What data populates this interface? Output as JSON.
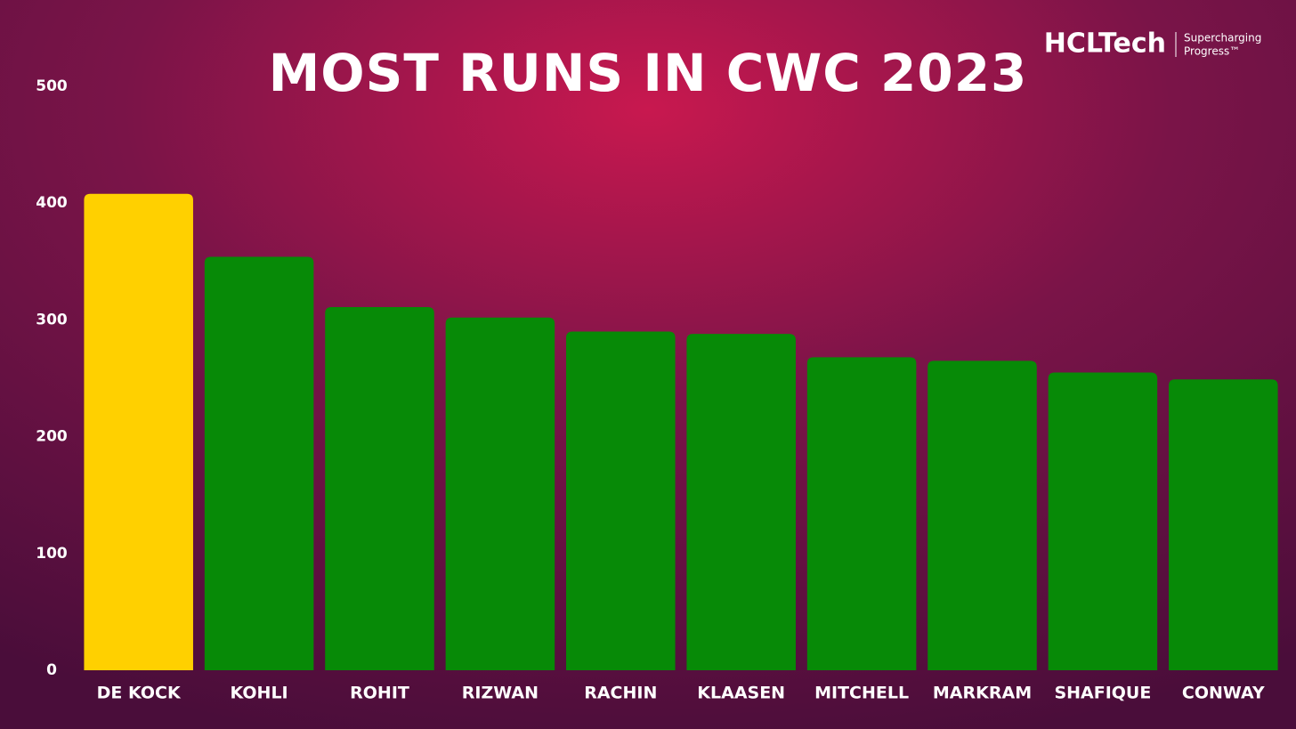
{
  "chart_data": {
    "type": "bar",
    "title": "MOST RUNS IN CWC 2023",
    "brand": {
      "name": "HCLTech",
      "tagline_1": "Supercharging",
      "tagline_2": "Progress™"
    },
    "categories": [
      "DE KOCK",
      "KOHLI",
      "ROHIT",
      "RIZWAN",
      "RACHIN",
      "KLAASEN",
      "MITCHELL",
      "MARKRAM",
      "SHAFIQUE",
      "CONWAY"
    ],
    "values": [
      408,
      354,
      311,
      302,
      290,
      288,
      268,
      265,
      255,
      249
    ],
    "colors": [
      "#ffd000",
      "#078a07",
      "#078a07",
      "#078a07",
      "#078a07",
      "#078a07",
      "#078a07",
      "#078a07",
      "#078a07",
      "#078a07"
    ],
    "ylim": [
      0,
      500
    ],
    "yticks": [
      0,
      100,
      200,
      300,
      400,
      500
    ],
    "grid": false
  }
}
